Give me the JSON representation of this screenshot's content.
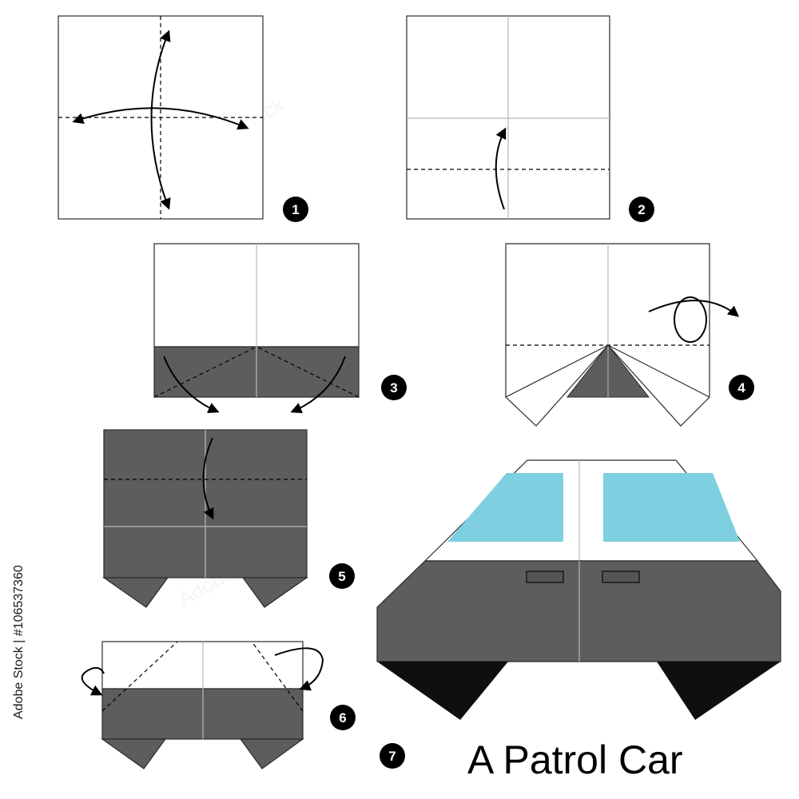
{
  "title": "A Patrol Car",
  "side_text": "Adobe Stock | #106537360",
  "watermark": "Adobe Stock",
  "steps": [
    {
      "number": "1"
    },
    {
      "number": "2"
    },
    {
      "number": "3"
    },
    {
      "number": "4"
    },
    {
      "number": "5"
    },
    {
      "number": "6"
    },
    {
      "number": "7"
    }
  ],
  "colors": {
    "paper_white": "#ffffff",
    "paper_gray": "#5d5d5f",
    "window_blue": "#7ecfe0",
    "wheel_black": "#0f0f0f",
    "outline": "#2b2b2b",
    "crease": "#b8b8b8"
  }
}
